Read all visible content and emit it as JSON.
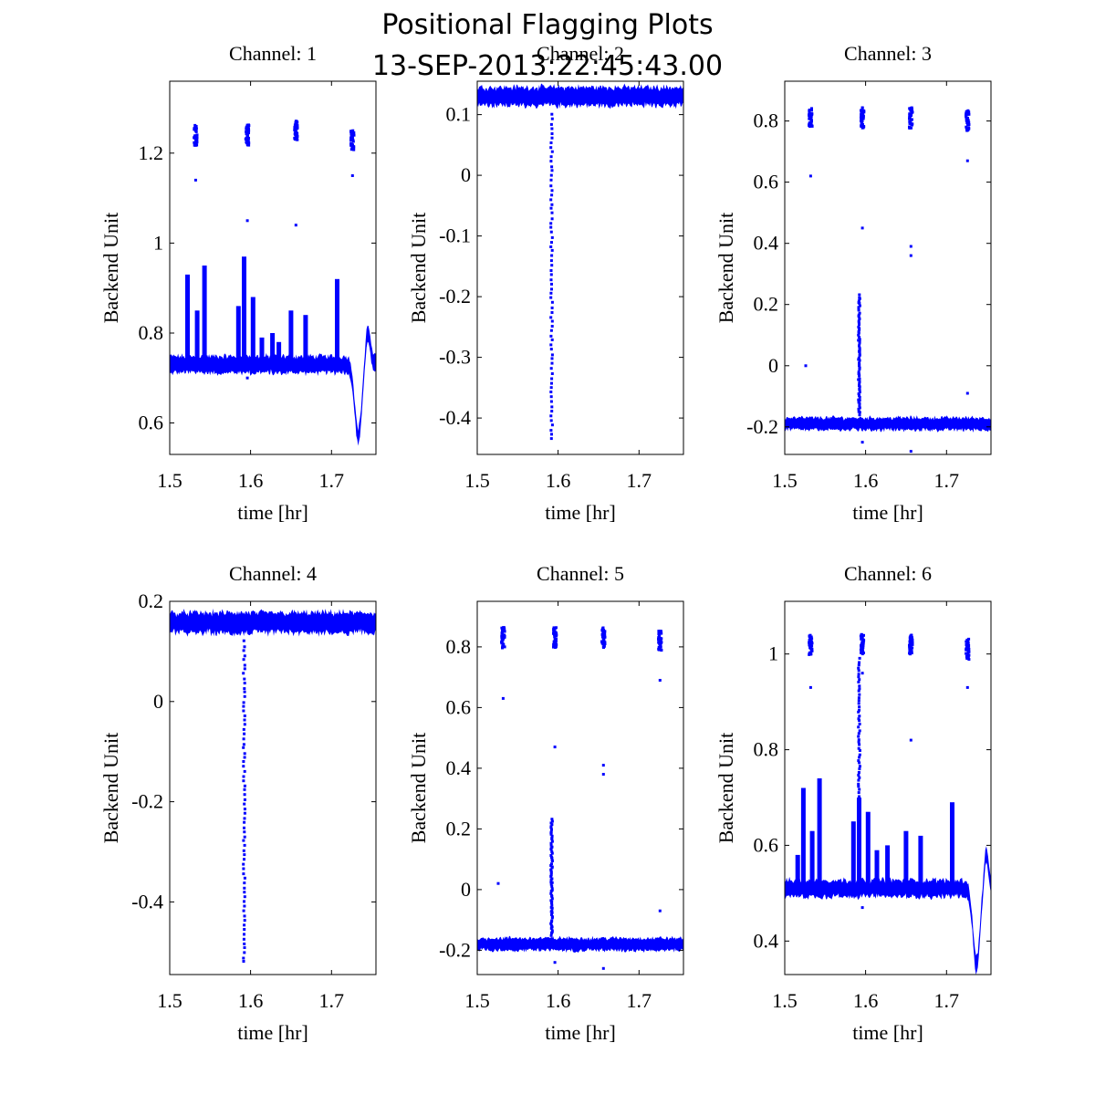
{
  "figure": {
    "title": "Positional Flagging Plots",
    "subtitle": "13-SEP-2013:22:45:43.00"
  },
  "chart_data": [
    {
      "type": "scatter",
      "title": "Channel: 1",
      "xlabel": "time [hr]",
      "ylabel": "Backend Unit",
      "xlim": [
        1.5,
        1.755
      ],
      "ylim": [
        0.53,
        1.36
      ],
      "xticks": [
        1.5,
        1.6,
        1.7
      ],
      "yticks": [
        0.6,
        0.8,
        1.0,
        1.2
      ],
      "ytick_labels": [
        "0.6",
        "0.8",
        "1",
        "1.2"
      ],
      "color": "#0000ff",
      "baseline": 0.73,
      "spikes": [
        {
          "x": 1.522,
          "top": 0.93
        },
        {
          "x": 1.534,
          "top": 0.85
        },
        {
          "x": 1.543,
          "top": 0.95
        },
        {
          "x": 1.585,
          "top": 0.86
        },
        {
          "x": 1.592,
          "top": 0.97
        },
        {
          "x": 1.603,
          "top": 0.88
        },
        {
          "x": 1.614,
          "top": 0.79
        },
        {
          "x": 1.627,
          "top": 0.8
        },
        {
          "x": 1.635,
          "top": 0.78
        },
        {
          "x": 1.65,
          "top": 0.85
        },
        {
          "x": 1.668,
          "top": 0.84
        },
        {
          "x": 1.707,
          "top": 0.92
        }
      ],
      "clusters": [
        {
          "x": 1.532,
          "y": 1.24
        },
        {
          "x": 1.596,
          "y": 1.24
        },
        {
          "x": 1.656,
          "y": 1.25
        },
        {
          "x": 1.726,
          "y": 1.23
        }
      ],
      "stray": [
        [
          1.532,
          1.14
        ],
        [
          1.596,
          1.05
        ],
        [
          1.656,
          1.04
        ],
        [
          1.726,
          1.15
        ],
        [
          1.596,
          0.7
        ]
      ],
      "dip": {
        "x": 1.733,
        "y": 0.57
      }
    },
    {
      "type": "scatter",
      "title": "Channel: 2",
      "xlabel": "time [hr]",
      "ylabel": "Backend Unit",
      "xlim": [
        1.5,
        1.755
      ],
      "ylim": [
        -0.46,
        0.155
      ],
      "xticks": [
        1.5,
        1.6,
        1.7
      ],
      "yticks": [
        -0.4,
        -0.3,
        -0.2,
        -0.1,
        0,
        0.1
      ],
      "ytick_labels": [
        "-0.4",
        "-0.3",
        "-0.2",
        "-0.1",
        "0",
        "0.1"
      ],
      "color": "#0000ff",
      "band": {
        "center": 0.13,
        "width": 0.03
      },
      "streak": {
        "x": 1.592,
        "from": 0.1,
        "to": -0.435
      }
    },
    {
      "type": "scatter",
      "title": "Channel: 3",
      "xlabel": "time [hr]",
      "ylabel": "Backend Unit",
      "xlim": [
        1.5,
        1.755
      ],
      "ylim": [
        -0.29,
        0.93
      ],
      "xticks": [
        1.5,
        1.6,
        1.7
      ],
      "yticks": [
        -0.2,
        0,
        0.2,
        0.4,
        0.6,
        0.8
      ],
      "ytick_labels": [
        "-0.2",
        "0",
        "0.2",
        "0.4",
        "0.6",
        "0.8"
      ],
      "color": "#0000ff",
      "band": {
        "center": -0.19,
        "width": 0.04
      },
      "clusters": [
        {
          "x": 1.532,
          "y": 0.81
        },
        {
          "x": 1.596,
          "y": 0.81
        },
        {
          "x": 1.656,
          "y": 0.81
        },
        {
          "x": 1.726,
          "y": 0.8
        }
      ],
      "stray": [
        [
          1.532,
          0.62
        ],
        [
          1.526,
          0.0
        ],
        [
          1.596,
          0.45
        ],
        [
          1.656,
          0.36
        ],
        [
          1.656,
          0.39
        ],
        [
          1.726,
          0.67
        ],
        [
          1.726,
          -0.09
        ],
        [
          1.596,
          -0.25
        ],
        [
          1.656,
          -0.28
        ]
      ],
      "streak": {
        "x": 1.592,
        "from": -0.16,
        "to": 0.23
      }
    },
    {
      "type": "scatter",
      "title": "Channel: 4",
      "xlabel": "time [hr]",
      "ylabel": "Backend Unit",
      "xlim": [
        1.5,
        1.755
      ],
      "ylim": [
        -0.545,
        0.2
      ],
      "xticks": [
        1.5,
        1.6,
        1.7
      ],
      "yticks": [
        -0.4,
        -0.2,
        0,
        0.2
      ],
      "ytick_labels": [
        "-0.4",
        "-0.2",
        "0",
        "0.2"
      ],
      "color": "#0000ff",
      "band": {
        "center": 0.157,
        "width": 0.04
      },
      "streak": {
        "x": 1.592,
        "from": 0.12,
        "to": -0.52
      }
    },
    {
      "type": "scatter",
      "title": "Channel: 5",
      "xlabel": "time [hr]",
      "ylabel": "Backend Unit",
      "xlim": [
        1.5,
        1.755
      ],
      "ylim": [
        -0.28,
        0.95
      ],
      "xticks": [
        1.5,
        1.6,
        1.7
      ],
      "yticks": [
        -0.2,
        0,
        0.2,
        0.4,
        0.6,
        0.8
      ],
      "ytick_labels": [
        "-0.2",
        "0",
        "0.2",
        "0.4",
        "0.6",
        "0.8"
      ],
      "color": "#0000ff",
      "band": {
        "center": -0.18,
        "width": 0.04
      },
      "clusters": [
        {
          "x": 1.532,
          "y": 0.83
        },
        {
          "x": 1.596,
          "y": 0.83
        },
        {
          "x": 1.656,
          "y": 0.83
        },
        {
          "x": 1.726,
          "y": 0.82
        }
      ],
      "stray": [
        [
          1.532,
          0.63
        ],
        [
          1.526,
          0.02
        ],
        [
          1.596,
          0.47
        ],
        [
          1.656,
          0.38
        ],
        [
          1.656,
          0.41
        ],
        [
          1.726,
          0.69
        ],
        [
          1.726,
          -0.07
        ],
        [
          1.596,
          -0.24
        ],
        [
          1.656,
          -0.26
        ]
      ],
      "streak": {
        "x": 1.592,
        "from": -0.15,
        "to": 0.23
      }
    },
    {
      "type": "scatter",
      "title": "Channel: 6",
      "xlabel": "time [hr]",
      "ylabel": "Backend Unit",
      "xlim": [
        1.5,
        1.755
      ],
      "ylim": [
        0.33,
        1.11
      ],
      "xticks": [
        1.5,
        1.6,
        1.7
      ],
      "yticks": [
        0.4,
        0.6,
        0.8,
        1.0
      ],
      "ytick_labels": [
        "0.4",
        "0.6",
        "0.8",
        "1"
      ],
      "color": "#0000ff",
      "baseline": 0.51,
      "spikes": [
        {
          "x": 1.516,
          "top": 0.58
        },
        {
          "x": 1.523,
          "top": 0.72
        },
        {
          "x": 1.534,
          "top": 0.63
        },
        {
          "x": 1.543,
          "top": 0.74
        },
        {
          "x": 1.585,
          "top": 0.65
        },
        {
          "x": 1.592,
          "top": 0.7
        },
        {
          "x": 1.603,
          "top": 0.67
        },
        {
          "x": 1.614,
          "top": 0.59
        },
        {
          "x": 1.627,
          "top": 0.6
        },
        {
          "x": 1.65,
          "top": 0.63
        },
        {
          "x": 1.668,
          "top": 0.62
        },
        {
          "x": 1.707,
          "top": 0.69
        }
      ],
      "clusters": [
        {
          "x": 1.532,
          "y": 1.02
        },
        {
          "x": 1.596,
          "y": 1.02
        },
        {
          "x": 1.656,
          "y": 1.02
        },
        {
          "x": 1.726,
          "y": 1.01
        }
      ],
      "stray": [
        [
          1.532,
          0.93
        ],
        [
          1.596,
          0.96
        ],
        [
          1.656,
          0.82
        ],
        [
          1.726,
          0.93
        ],
        [
          1.596,
          0.47
        ]
      ],
      "streak": {
        "x": 1.592,
        "from": 0.56,
        "to": 0.99
      },
      "dip": {
        "x": 1.737,
        "y": 0.35
      }
    }
  ]
}
